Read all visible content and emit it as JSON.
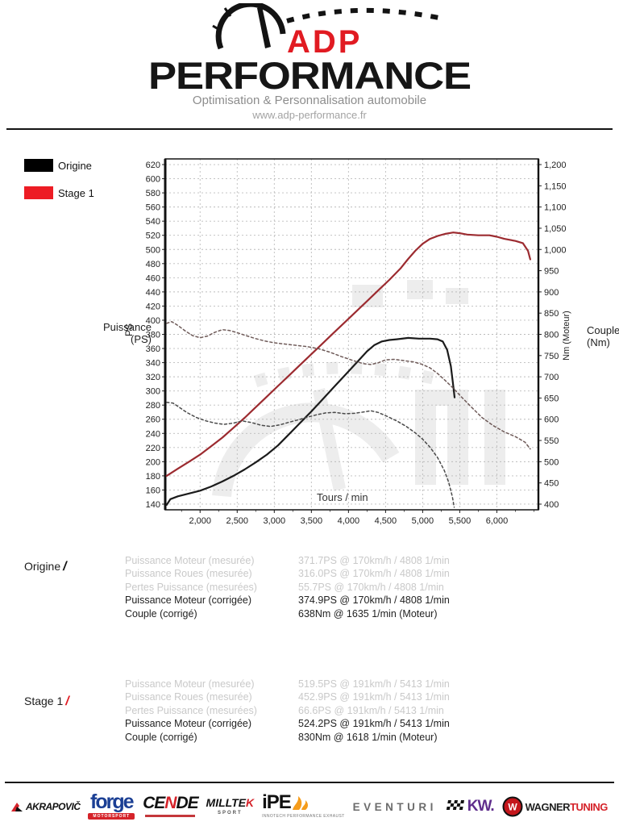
{
  "header": {
    "brand_top": "ADP",
    "brand_bottom": "PERFORMANCE",
    "tagline": "Optimisation & Personnalisation automobile",
    "website": "www.adp-performance.fr",
    "accent_color": "#e11b22"
  },
  "legend": {
    "items": [
      {
        "label": "Origine",
        "color": "#000000"
      },
      {
        "label": "Stage 1",
        "color": "#ed1c24"
      }
    ]
  },
  "chart_data": {
    "type": "line",
    "xlabel": "Tours / min",
    "ylabel": "PS",
    "y2label": "Nm (Moteur)",
    "left_caption": "Puissance\n(PS)",
    "right_caption": "Couple\n(Nm)",
    "xlim": [
      1530,
      6560
    ],
    "x_major_ticks": [
      2000,
      2500,
      3000,
      3500,
      4000,
      4500,
      5000,
      5500,
      6000
    ],
    "x_minor_step": 250,
    "ylim_left": [
      140,
      620
    ],
    "y_left_step": 20,
    "ylim_right": [
      400,
      1200
    ],
    "y_right_step": 50,
    "grid": true,
    "grid_color": "#bcbcbc",
    "series": [
      {
        "name": "Origine Puissance (PS)",
        "axis": "left",
        "style": "solid",
        "color": "#1b1b1b",
        "points": [
          [
            1550,
            139
          ],
          [
            1600,
            147
          ],
          [
            1700,
            151
          ],
          [
            1850,
            155
          ],
          [
            2000,
            159
          ],
          [
            2150,
            165
          ],
          [
            2300,
            172
          ],
          [
            2450,
            180
          ],
          [
            2600,
            189
          ],
          [
            2750,
            199
          ],
          [
            2900,
            210
          ],
          [
            3050,
            223
          ],
          [
            3200,
            239
          ],
          [
            3350,
            255
          ],
          [
            3500,
            271
          ],
          [
            3650,
            288
          ],
          [
            3800,
            305
          ],
          [
            3950,
            322
          ],
          [
            4100,
            339
          ],
          [
            4250,
            356
          ],
          [
            4350,
            365
          ],
          [
            4450,
            370
          ],
          [
            4550,
            372
          ],
          [
            4650,
            373
          ],
          [
            4808,
            375
          ],
          [
            4950,
            374
          ],
          [
            5100,
            374
          ],
          [
            5200,
            373
          ],
          [
            5270,
            370
          ],
          [
            5330,
            358
          ],
          [
            5380,
            335
          ],
          [
            5415,
            305
          ],
          [
            5430,
            291
          ]
        ]
      },
      {
        "name": "Stage 1 Puissance (PS)",
        "axis": "left",
        "style": "solid",
        "color": "#9c2b30",
        "points": [
          [
            1550,
            180
          ],
          [
            1700,
            190
          ],
          [
            1850,
            200
          ],
          [
            2000,
            210
          ],
          [
            2150,
            222
          ],
          [
            2300,
            234
          ],
          [
            2450,
            248
          ],
          [
            2600,
            262
          ],
          [
            2750,
            277
          ],
          [
            2900,
            292
          ],
          [
            3050,
            307
          ],
          [
            3200,
            322
          ],
          [
            3350,
            337
          ],
          [
            3500,
            352
          ],
          [
            3650,
            367
          ],
          [
            3800,
            382
          ],
          [
            3950,
            397
          ],
          [
            4100,
            412
          ],
          [
            4250,
            427
          ],
          [
            4400,
            442
          ],
          [
            4550,
            457
          ],
          [
            4700,
            473
          ],
          [
            4800,
            486
          ],
          [
            4900,
            498
          ],
          [
            5000,
            508
          ],
          [
            5100,
            515
          ],
          [
            5200,
            519
          ],
          [
            5300,
            522
          ],
          [
            5413,
            524
          ],
          [
            5500,
            523
          ],
          [
            5600,
            521
          ],
          [
            5750,
            520
          ],
          [
            5900,
            520
          ],
          [
            6000,
            518
          ],
          [
            6100,
            515
          ],
          [
            6250,
            512
          ],
          [
            6350,
            509
          ],
          [
            6420,
            498
          ],
          [
            6450,
            486
          ]
        ]
      },
      {
        "name": "Origine Couple (Nm)",
        "axis": "right",
        "style": "dashed",
        "color": "#4a4a4a",
        "points": [
          [
            1550,
            640
          ],
          [
            1635,
            638
          ],
          [
            1720,
            628
          ],
          [
            1820,
            616
          ],
          [
            1950,
            604
          ],
          [
            2080,
            596
          ],
          [
            2200,
            591
          ],
          [
            2320,
            588
          ],
          [
            2450,
            591
          ],
          [
            2570,
            596
          ],
          [
            2700,
            592
          ],
          [
            2820,
            586
          ],
          [
            2950,
            583
          ],
          [
            3080,
            587
          ],
          [
            3200,
            593
          ],
          [
            3330,
            599
          ],
          [
            3450,
            605
          ],
          [
            3580,
            611
          ],
          [
            3700,
            615
          ],
          [
            3820,
            616
          ],
          [
            3950,
            613
          ],
          [
            4080,
            614
          ],
          [
            4200,
            617
          ],
          [
            4300,
            620
          ],
          [
            4400,
            616
          ],
          [
            4520,
            607
          ],
          [
            4650,
            596
          ],
          [
            4780,
            583
          ],
          [
            4900,
            568
          ],
          [
            5000,
            553
          ],
          [
            5100,
            534
          ],
          [
            5200,
            510
          ],
          [
            5290,
            480
          ],
          [
            5350,
            452
          ],
          [
            5400,
            418
          ],
          [
            5425,
            393
          ]
        ]
      },
      {
        "name": "Stage 1 Couple (Nm)",
        "axis": "right",
        "style": "dashed",
        "color": "#6e5a58",
        "points": [
          [
            1550,
            826
          ],
          [
            1618,
            830
          ],
          [
            1700,
            821
          ],
          [
            1800,
            808
          ],
          [
            1900,
            797
          ],
          [
            2000,
            792
          ],
          [
            2100,
            796
          ],
          [
            2200,
            805
          ],
          [
            2300,
            811
          ],
          [
            2400,
            809
          ],
          [
            2500,
            804
          ],
          [
            2620,
            797
          ],
          [
            2750,
            790
          ],
          [
            2880,
            784
          ],
          [
            3000,
            780
          ],
          [
            3150,
            777
          ],
          [
            3300,
            774
          ],
          [
            3450,
            771
          ],
          [
            3600,
            766
          ],
          [
            3750,
            758
          ],
          [
            3900,
            748
          ],
          [
            4050,
            739
          ],
          [
            4200,
            731
          ],
          [
            4300,
            729
          ],
          [
            4400,
            733
          ],
          [
            4500,
            740
          ],
          [
            4620,
            741
          ],
          [
            4750,
            738
          ],
          [
            4880,
            735
          ],
          [
            5000,
            729
          ],
          [
            5100,
            721
          ],
          [
            5200,
            708
          ],
          [
            5300,
            692
          ],
          [
            5413,
            673
          ],
          [
            5520,
            653
          ],
          [
            5650,
            630
          ],
          [
            5800,
            604
          ],
          [
            5950,
            585
          ],
          [
            6100,
            570
          ],
          [
            6250,
            559
          ],
          [
            6380,
            546
          ],
          [
            6450,
            530
          ]
        ]
      }
    ]
  },
  "results": [
    {
      "name": "Origine",
      "slash": "/",
      "rows": [
        {
          "label": "Puissance Moteur (mesurée)",
          "value": "371.7PS @ 170km/h / 4808 1/min",
          "muted": true
        },
        {
          "label": "Puissance Roues (mesurée)",
          "value": "316.0PS @ 170km/h / 4808 1/min",
          "muted": true
        },
        {
          "label": "Pertes Puissance (mesurées)",
          "value": "55.7PS @ 170km/h / 4808 1/min",
          "muted": true
        },
        {
          "label": "Puissance Moteur (corrigée)",
          "value": "374.9PS @ 170km/h / 4808 1/min",
          "muted": false
        },
        {
          "label": "Couple (corrigé)",
          "value": "638Nm @ 1635 1/min (Moteur)",
          "muted": false
        }
      ]
    },
    {
      "name": "Stage 1",
      "slash": "/",
      "rows": [
        {
          "label": "Puissance Moteur (mesurée)",
          "value": "519.5PS @ 191km/h / 5413 1/min",
          "muted": true
        },
        {
          "label": "Puissance Roues (mesurée)",
          "value": "452.9PS @ 191km/h / 5413 1/min",
          "muted": true
        },
        {
          "label": "Pertes Puissance (mesurées)",
          "value": "66.6PS @ 191km/h / 5413 1/min",
          "muted": true
        },
        {
          "label": "Puissance Moteur (corrigée)",
          "value": "524.2PS @ 191km/h / 5413 1/min",
          "muted": false
        },
        {
          "label": "Couple (corrigé)",
          "value": "830Nm @ 1618 1/min (Moteur)",
          "muted": false
        }
      ]
    }
  ],
  "footer": {
    "partners": {
      "akrapovic": "AKRAPOVIČ",
      "forge": "forge",
      "forge_sub": "MOTORSPORT",
      "cende_a": "CE",
      "cende_n": "N",
      "cende_b": "DE",
      "milltek_a": "MILLTE",
      "milltek_k": "K",
      "milltek_sub": "SPORT",
      "ipe": "iPE",
      "ipe_sub": "INNOTECH PERFORMANCE EXHAUST",
      "eventuri": "EVENTURI",
      "kw": "KW.",
      "wagner_monogram": "W",
      "wagner_a": "WAGNER",
      "wagner_b": "TUNING"
    }
  }
}
